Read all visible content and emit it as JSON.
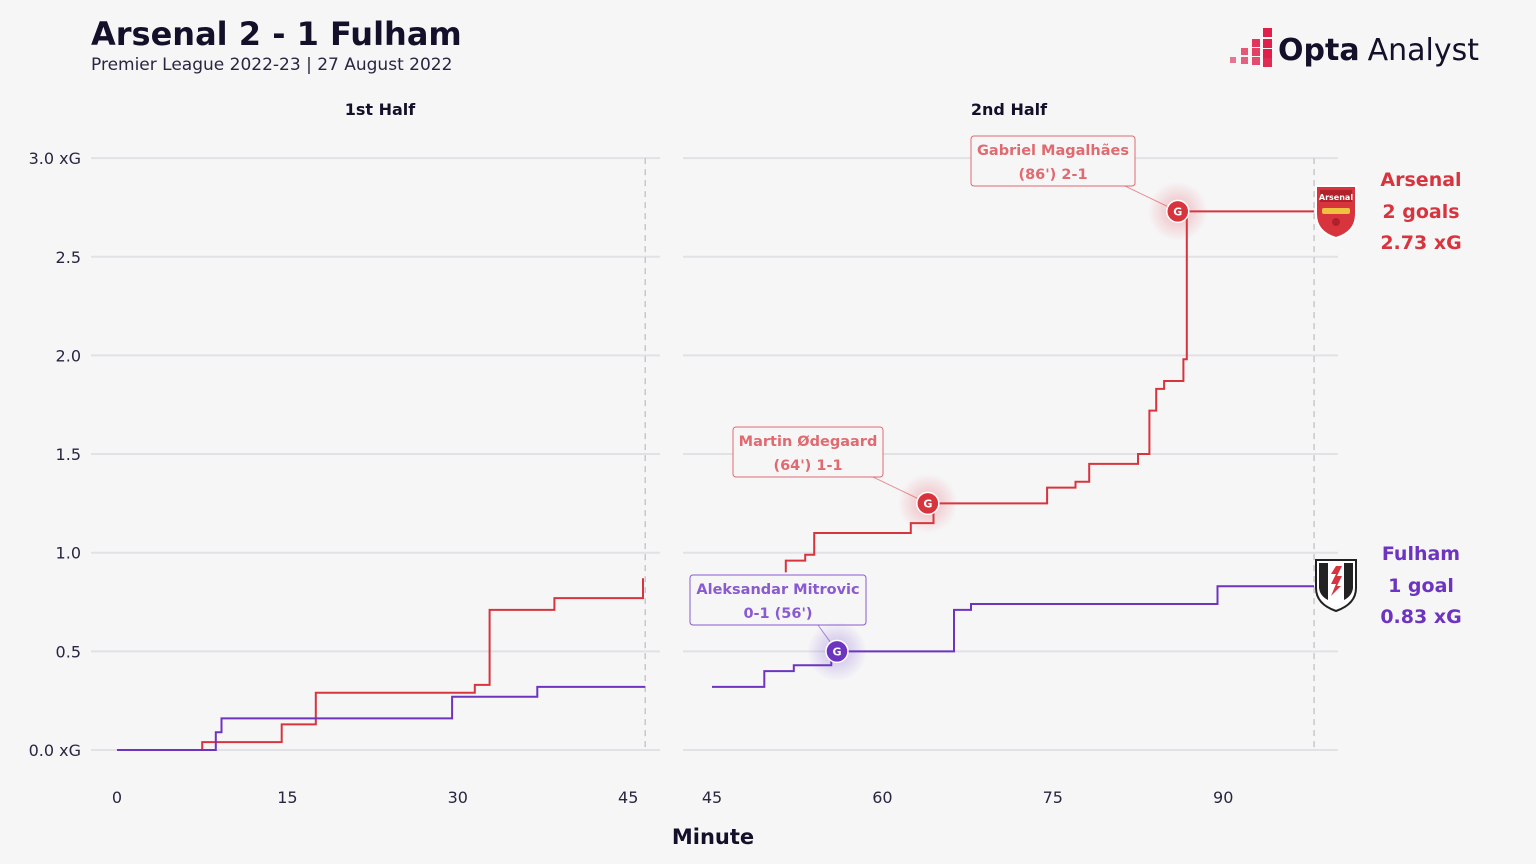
{
  "header": {
    "title": "Arsenal 2 - 1 Fulham",
    "subtitle": "Premier League 2022-23 | 27 August 2022"
  },
  "brand": {
    "bold": "Opta",
    "light": "Analyst",
    "icon": "opta-dots-logo",
    "accent": "#e0204a"
  },
  "chart_data": {
    "type": "line",
    "xlabel": "Minute",
    "ylim": [
      0,
      3.0
    ],
    "y_ticks": [
      "0.0 xG",
      "0.5",
      "1.0",
      "1.5",
      "2.0",
      "2.5",
      "3.0 xG"
    ],
    "y_tick_values": [
      0,
      0.5,
      1.0,
      1.5,
      2.0,
      2.5,
      3.0
    ],
    "grid": true,
    "halves": [
      {
        "label": "1st Half",
        "xlim": [
          0,
          46.5
        ],
        "x_ticks": [
          0,
          15,
          30,
          45
        ],
        "end_minute": 46.5
      },
      {
        "label": "2nd Half",
        "xlim": [
          45,
          98
        ],
        "x_ticks": [
          45,
          60,
          75,
          90
        ],
        "end_minute": 98
      }
    ],
    "series": [
      {
        "name": "Arsenal",
        "color": "#d8343e",
        "goals_label": "2 goals",
        "xg_label": "2.73 xG",
        "crest": "arsenal-crest",
        "crest_text": "Arsenal",
        "segments": [
          {
            "half": 0,
            "points": [
              [
                0,
                0
              ],
              [
                7.5,
                0
              ],
              [
                7.5,
                0.04
              ],
              [
                14.5,
                0.04
              ],
              [
                14.5,
                0.13
              ],
              [
                17.5,
                0.13
              ],
              [
                17.5,
                0.29
              ],
              [
                31.5,
                0.29
              ],
              [
                31.5,
                0.33
              ],
              [
                32.8,
                0.33
              ],
              [
                32.8,
                0.71
              ],
              [
                38.5,
                0.71
              ],
              [
                38.5,
                0.77
              ],
              [
                46.3,
                0.77
              ],
              [
                46.3,
                0.87
              ]
            ]
          },
          {
            "half": 1,
            "points": [
              [
                51.5,
                0.9
              ],
              [
                51.5,
                0.96
              ],
              [
                53.2,
                0.96
              ],
              [
                53.2,
                0.99
              ],
              [
                54,
                0.99
              ],
              [
                54,
                1.1
              ],
              [
                62.5,
                1.1
              ],
              [
                62.5,
                1.15
              ],
              [
                64.5,
                1.15
              ],
              [
                64.5,
                1.25
              ],
              [
                74.5,
                1.25
              ],
              [
                74.5,
                1.33
              ],
              [
                77,
                1.33
              ],
              [
                77,
                1.36
              ],
              [
                78.2,
                1.36
              ],
              [
                78.2,
                1.45
              ],
              [
                82.5,
                1.45
              ],
              [
                82.5,
                1.5
              ],
              [
                83.5,
                1.5
              ],
              [
                83.5,
                1.72
              ],
              [
                84.1,
                1.72
              ],
              [
                84.1,
                1.83
              ],
              [
                84.8,
                1.83
              ],
              [
                84.8,
                1.87
              ],
              [
                86.5,
                1.87
              ],
              [
                86.5,
                1.98
              ],
              [
                86.8,
                1.98
              ],
              [
                86.8,
                2.73
              ],
              [
                98,
                2.73
              ]
            ]
          }
        ],
        "goals": [
          {
            "minute": 64,
            "xg": 1.25,
            "half": 1,
            "marker": "G",
            "label_line1": "Martin Ødegaard",
            "label_line2": "(64') 1-1"
          },
          {
            "minute": 86,
            "xg": 2.73,
            "half": 1,
            "marker": "G",
            "label_line1": "Gabriel Magalhães",
            "label_line2": "(86') 2-1"
          }
        ]
      },
      {
        "name": "Fulham",
        "color": "#6d34c0",
        "goals_label": "1 goal",
        "xg_label": "0.83 xG",
        "crest": "fulham-crest",
        "segments": [
          {
            "half": 0,
            "points": [
              [
                0,
                0
              ],
              [
                8.7,
                0
              ],
              [
                8.7,
                0.09
              ],
              [
                9.2,
                0.09
              ],
              [
                9.2,
                0.16
              ],
              [
                29.5,
                0.16
              ],
              [
                29.5,
                0.27
              ],
              [
                37,
                0.27
              ],
              [
                37,
                0.32
              ],
              [
                46.5,
                0.32
              ]
            ]
          },
          {
            "half": 1,
            "points": [
              [
                45,
                0.32
              ],
              [
                49.6,
                0.32
              ],
              [
                49.6,
                0.4
              ],
              [
                52.2,
                0.4
              ],
              [
                52.2,
                0.43
              ],
              [
                55.5,
                0.43
              ],
              [
                55.5,
                0.51
              ],
              [
                55.8,
                0.51
              ],
              [
                55.8,
                0.5
              ],
              [
                66.3,
                0.5
              ],
              [
                66.3,
                0.71
              ],
              [
                67.8,
                0.71
              ],
              [
                67.8,
                0.74
              ],
              [
                89.5,
                0.74
              ],
              [
                89.5,
                0.83
              ],
              [
                98,
                0.83
              ]
            ]
          }
        ],
        "goals": [
          {
            "minute": 56,
            "xg": 0.5,
            "half": 1,
            "marker": "G",
            "label_line1": "Aleksandar Mitrovic",
            "label_line2": "0-1 (56')"
          }
        ]
      }
    ]
  }
}
